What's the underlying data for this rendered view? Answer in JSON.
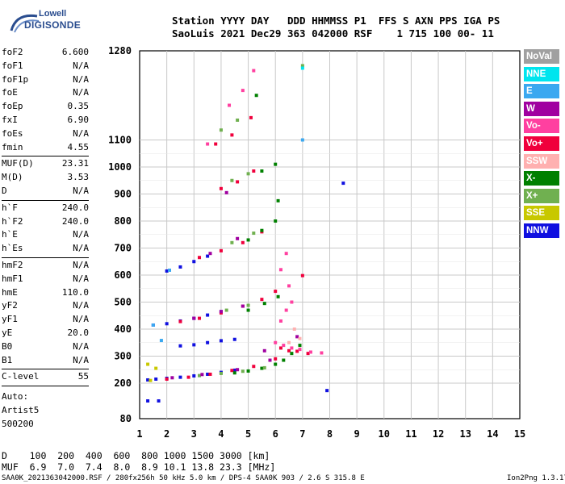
{
  "logo": {
    "line1": "Lowell",
    "line2": "DIGISONDE"
  },
  "header": {
    "line1": "Station YYYY DAY   DDD HHMMSS P1  FFS S AXN PPS IGA PS",
    "line2": "SaoLuis 2021 Dec29 363 042000 RSF    1 715 100 00- 11"
  },
  "params": [
    {
      "k": "foF2",
      "v": "6.600"
    },
    {
      "k": "foF1",
      "v": "N/A"
    },
    {
      "k": "foF1p",
      "v": "N/A"
    },
    {
      "k": "foE",
      "v": "N/A"
    },
    {
      "k": "foEp",
      "v": "0.35"
    },
    {
      "k": "fxI",
      "v": "6.90"
    },
    {
      "k": "foEs",
      "v": "N/A"
    },
    {
      "k": "fmin",
      "v": "4.55"
    },
    {
      "sep": true
    },
    {
      "k": "MUF(D)",
      "v": "23.31"
    },
    {
      "k": "M(D)",
      "v": "3.53"
    },
    {
      "k": "D",
      "v": "N/A"
    },
    {
      "sep": true
    },
    {
      "k": "h`F",
      "v": "240.0"
    },
    {
      "k": "h`F2",
      "v": "240.0"
    },
    {
      "k": "h`E",
      "v": "N/A"
    },
    {
      "k": "h`Es",
      "v": "N/A"
    },
    {
      "sep": true
    },
    {
      "k": "hmF2",
      "v": "N/A"
    },
    {
      "k": "hmF1",
      "v": "N/A"
    },
    {
      "k": "hmE",
      "v": "110.0"
    },
    {
      "k": "yF2",
      "v": "N/A"
    },
    {
      "k": "yF1",
      "v": "N/A"
    },
    {
      "k": "yE",
      "v": "20.0"
    },
    {
      "k": "B0",
      "v": "N/A"
    },
    {
      "k": "B1",
      "v": "N/A"
    },
    {
      "sep": true
    },
    {
      "k": "C-level",
      "v": "55"
    },
    {
      "sep": true
    }
  ],
  "auto": [
    "Auto:",
    "Artist5",
    "500200"
  ],
  "legend": [
    {
      "label": "NoVal",
      "color": "#a0a0a0"
    },
    {
      "label": "NNE",
      "color": "#00e5ee"
    },
    {
      "label": "E",
      "color": "#3aa8f0"
    },
    {
      "label": "W",
      "color": "#a000a0"
    },
    {
      "label": "Vo-",
      "color": "#ff40a0"
    },
    {
      "label": "Vo+",
      "color": "#f0003c"
    },
    {
      "label": "SSW",
      "color": "#ffb0b0"
    },
    {
      "label": "X-",
      "color": "#008000"
    },
    {
      "label": "X+",
      "color": "#70b050"
    },
    {
      "label": "SSE",
      "color": "#c8c800"
    },
    {
      "label": "NNW",
      "color": "#1010e0"
    }
  ],
  "bottom": {
    "line1": "D    100  200  400  600  800 1000 1500 3000 [km]",
    "line2": "MUF  6.9  7.0  7.4  8.0  8.9 10.1 13.8 23.3 [MHz]"
  },
  "footer": {
    "left": "SAA0K_2021363042000.RSF / 280fx256h 50 kHz 5.0 km / DPS-4 SAA0K 903 / 2.6 S 315.8 E",
    "right": "Ion2Png 1.3.17"
  },
  "chart_data": {
    "type": "scatter",
    "title": "",
    "xlabel": "",
    "ylabel": "",
    "xlim": [
      1,
      15
    ],
    "ylim": [
      80,
      1280
    ],
    "xticks": [
      1,
      2,
      3,
      4,
      5,
      6,
      7,
      8,
      9,
      10,
      11,
      12,
      13,
      14,
      15
    ],
    "yticks": [
      80,
      200,
      300,
      400,
      500,
      600,
      700,
      800,
      900,
      1000,
      1100,
      1280
    ],
    "grid": true,
    "series": [
      {
        "name": "NNW",
        "color": "#1010e0",
        "points": [
          [
            1.3,
            212
          ],
          [
            1.6,
            215
          ],
          [
            2.0,
            218
          ],
          [
            2.5,
            222
          ],
          [
            3.0,
            227
          ],
          [
            3.5,
            233
          ],
          [
            4.0,
            240
          ],
          [
            4.5,
            248
          ],
          [
            1.5,
            415
          ],
          [
            2.0,
            420
          ],
          [
            2.5,
            430
          ],
          [
            3.0,
            440
          ],
          [
            3.5,
            452
          ],
          [
            4.0,
            465
          ],
          [
            2.5,
            338
          ],
          [
            3.0,
            342
          ],
          [
            3.5,
            350
          ],
          [
            4.0,
            357
          ],
          [
            4.5,
            362
          ],
          [
            2.0,
            615
          ],
          [
            2.5,
            630
          ],
          [
            3.0,
            650
          ],
          [
            3.5,
            670
          ],
          [
            8.5,
            940
          ],
          [
            7.9,
            175
          ],
          [
            1.7,
            140
          ],
          [
            1.3,
            140
          ]
        ]
      },
      {
        "name": "Vo+",
        "color": "#f0003c",
        "points": [
          [
            2.0,
            215
          ],
          [
            2.8,
            222
          ],
          [
            3.6,
            233
          ],
          [
            4.4,
            247
          ],
          [
            5.2,
            262
          ],
          [
            6.0,
            290
          ],
          [
            2.5,
            428
          ],
          [
            3.2,
            440
          ],
          [
            4.0,
            460
          ],
          [
            4.8,
            485
          ],
          [
            5.5,
            510
          ],
          [
            6.0,
            540
          ],
          [
            3.2,
            665
          ],
          [
            4.0,
            690
          ],
          [
            4.8,
            720
          ],
          [
            5.5,
            760
          ],
          [
            4.0,
            920
          ],
          [
            4.6,
            945
          ],
          [
            5.2,
            985
          ],
          [
            3.8,
            1085
          ],
          [
            4.4,
            1110
          ],
          [
            5.1,
            1145
          ],
          [
            6.2,
            330
          ],
          [
            6.5,
            320
          ],
          [
            6.8,
            318
          ],
          [
            7.2,
            310
          ],
          [
            7.0,
            598
          ]
        ]
      },
      {
        "name": "Vo-",
        "color": "#ff40a0",
        "points": [
          [
            6.0,
            350
          ],
          [
            6.3,
            340
          ],
          [
            6.6,
            330
          ],
          [
            6.9,
            325
          ],
          [
            7.3,
            315
          ],
          [
            7.7,
            312
          ],
          [
            6.2,
            430
          ],
          [
            6.4,
            470
          ],
          [
            6.6,
            500
          ],
          [
            6.2,
            620
          ],
          [
            6.4,
            680
          ],
          [
            6.5,
            560
          ],
          [
            4.3,
            1170
          ],
          [
            4.8,
            1200
          ],
          [
            5.2,
            1240
          ],
          [
            3.5,
            1085
          ]
        ]
      },
      {
        "name": "X-",
        "color": "#008000",
        "points": [
          [
            4.5,
            238
          ],
          [
            5.0,
            245
          ],
          [
            5.5,
            255
          ],
          [
            6.0,
            270
          ],
          [
            6.3,
            285
          ],
          [
            6.6,
            310
          ],
          [
            6.9,
            340
          ],
          [
            5.0,
            470
          ],
          [
            5.6,
            495
          ],
          [
            6.1,
            520
          ],
          [
            5.0,
            730
          ],
          [
            5.5,
            765
          ],
          [
            6.0,
            800
          ],
          [
            5.5,
            985
          ],
          [
            6.0,
            1010
          ],
          [
            5.3,
            1190
          ],
          [
            6.1,
            875
          ]
        ]
      },
      {
        "name": "X+",
        "color": "#70b050",
        "points": [
          [
            3.2,
            228
          ],
          [
            4.0,
            236
          ],
          [
            4.8,
            244
          ],
          [
            5.6,
            257
          ],
          [
            4.2,
            470
          ],
          [
            5.0,
            488
          ],
          [
            4.4,
            720
          ],
          [
            5.2,
            755
          ],
          [
            4.4,
            950
          ],
          [
            5.0,
            975
          ],
          [
            4.0,
            1120
          ],
          [
            4.6,
            1140
          ],
          [
            7.0,
            1250
          ]
        ]
      },
      {
        "name": "W",
        "color": "#a000a0",
        "points": [
          [
            2.2,
            220
          ],
          [
            3.3,
            232
          ],
          [
            4.6,
            250
          ],
          [
            5.8,
            285
          ],
          [
            3.0,
            440
          ],
          [
            4.0,
            465
          ],
          [
            4.8,
            485
          ],
          [
            3.6,
            680
          ],
          [
            4.6,
            735
          ],
          [
            4.2,
            905
          ],
          [
            6.8,
            372
          ],
          [
            5.6,
            320
          ]
        ]
      },
      {
        "name": "E",
        "color": "#3aa8f0",
        "points": [
          [
            7.0,
            1100
          ],
          [
            1.5,
            415
          ],
          [
            2.1,
            618
          ],
          [
            1.8,
            358
          ]
        ]
      },
      {
        "name": "NNE",
        "color": "#00e5ee",
        "points": [
          [
            7.0,
            1245
          ]
        ]
      },
      {
        "name": "SSW",
        "color": "#ffb0b0",
        "points": [
          [
            6.7,
            400
          ],
          [
            6.5,
            350
          ],
          [
            6.9,
            365
          ]
        ]
      },
      {
        "name": "SSE",
        "color": "#c8c800",
        "points": [
          [
            1.4,
            210
          ],
          [
            1.3,
            270
          ],
          [
            1.6,
            255
          ]
        ]
      }
    ]
  }
}
